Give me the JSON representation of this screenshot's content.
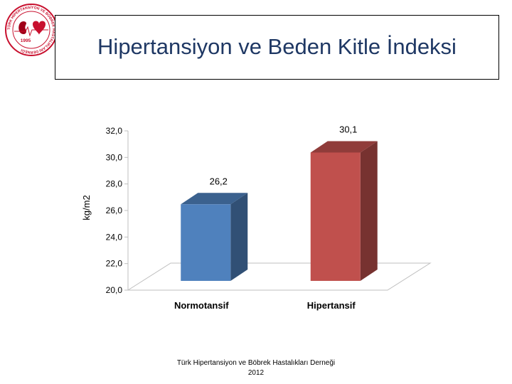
{
  "slide": {
    "title": "Hipertansiyon ve Beden Kitle İndeksi",
    "footer_line1": "Türk Hipertansiyon ve Böbrek Hastalıkları Derneği",
    "footer_line2": "2012"
  },
  "logo": {
    "year": "1995",
    "ring_text": "TÜRK HİPERTANSİYON VE BÖBREK HASTALIKLARI DERNEĞİ",
    "colors": {
      "ring": "#c8102e",
      "heart": "#c8102e",
      "kidney": "#a00018"
    }
  },
  "chart_data": {
    "type": "bar",
    "title": "",
    "xlabel": "",
    "ylabel": "kg/m2",
    "ylim": [
      20,
      32
    ],
    "yticks": [
      20,
      22,
      24,
      26,
      28,
      30,
      32
    ],
    "ytick_labels": [
      "20,0",
      "22,0",
      "24,0",
      "26,0",
      "28,0",
      "30,0",
      "32,0"
    ],
    "categories": [
      "Normotansif",
      "Hipertansif"
    ],
    "values": [
      26.2,
      30.1
    ],
    "data_labels": [
      "26,2",
      "30,1"
    ],
    "colors": [
      "#4f81bd",
      "#c0504d"
    ],
    "grid": false,
    "legend": "none",
    "style": "3d-column"
  }
}
